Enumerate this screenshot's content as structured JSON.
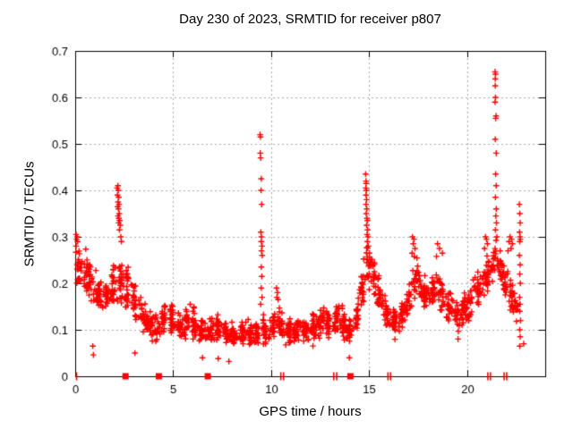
{
  "chart_data": {
    "type": "scatter",
    "title": "Day 230 of 2023, SRMTID for receiver p807",
    "xlabel": "GPS time / hours",
    "ylabel": "SRMTID / TECUs",
    "xlim": [
      0,
      24
    ],
    "ylim": [
      0,
      0.7
    ],
    "xticks": [
      {
        "v": 0,
        "label": "0"
      },
      {
        "v": 5,
        "label": "5"
      },
      {
        "v": 10,
        "label": "10"
      },
      {
        "v": 15,
        "label": "15"
      },
      {
        "v": 20,
        "label": "20"
      }
    ],
    "yticks": [
      {
        "v": 0,
        "label": "0"
      },
      {
        "v": 0.1,
        "label": "0.1"
      },
      {
        "v": 0.2,
        "label": "0.2"
      },
      {
        "v": 0.3,
        "label": "0.3"
      },
      {
        "v": 0.4,
        "label": "0.4"
      },
      {
        "v": 0.5,
        "label": "0.5"
      },
      {
        "v": 0.6,
        "label": "0.6"
      },
      {
        "v": 0.7,
        "label": "0.7"
      }
    ],
    "grid": true,
    "legend": "none",
    "marker": "plus",
    "marker_color": "#ff0000",
    "grid_color": "#a8a8a8",
    "axis_color": "#000000",
    "background": "#ffffff",
    "generator": {
      "seed": 13,
      "points_per_hour": 68,
      "column_width_hours": 0.16,
      "baseline_nodes": [
        [
          0.0,
          0.25,
          0.04
        ],
        [
          0.3,
          0.235,
          0.045
        ],
        [
          0.7,
          0.21,
          0.05
        ],
        [
          1.2,
          0.175,
          0.045
        ],
        [
          1.7,
          0.175,
          0.05
        ],
        [
          2.1,
          0.21,
          0.055
        ],
        [
          2.5,
          0.2,
          0.05
        ],
        [
          2.9,
          0.175,
          0.045
        ],
        [
          3.3,
          0.135,
          0.04
        ],
        [
          3.8,
          0.115,
          0.038
        ],
        [
          4.3,
          0.105,
          0.035
        ],
        [
          4.7,
          0.135,
          0.04
        ],
        [
          5.1,
          0.115,
          0.035
        ],
        [
          5.5,
          0.105,
          0.032
        ],
        [
          5.9,
          0.13,
          0.04
        ],
        [
          6.3,
          0.1,
          0.032
        ],
        [
          6.7,
          0.095,
          0.032
        ],
        [
          7.1,
          0.1,
          0.035
        ],
        [
          7.5,
          0.105,
          0.035
        ],
        [
          7.9,
          0.085,
          0.028
        ],
        [
          8.3,
          0.09,
          0.03
        ],
        [
          8.7,
          0.095,
          0.03
        ],
        [
          9.1,
          0.085,
          0.028
        ],
        [
          9.5,
          0.105,
          0.04
        ],
        [
          9.9,
          0.09,
          0.03
        ],
        [
          10.3,
          0.125,
          0.04
        ],
        [
          10.7,
          0.1,
          0.032
        ],
        [
          11.1,
          0.095,
          0.032
        ],
        [
          11.5,
          0.105,
          0.035
        ],
        [
          11.9,
          0.09,
          0.03
        ],
        [
          12.3,
          0.11,
          0.038
        ],
        [
          12.7,
          0.13,
          0.042
        ],
        [
          13.1,
          0.11,
          0.038
        ],
        [
          13.5,
          0.13,
          0.042
        ],
        [
          13.9,
          0.085,
          0.032
        ],
        [
          14.2,
          0.1,
          0.04
        ],
        [
          14.5,
          0.15,
          0.05
        ],
        [
          14.8,
          0.22,
          0.06
        ],
        [
          15.1,
          0.24,
          0.055
        ],
        [
          15.4,
          0.2,
          0.05
        ],
        [
          15.7,
          0.155,
          0.045
        ],
        [
          16.1,
          0.11,
          0.035
        ],
        [
          16.5,
          0.115,
          0.038
        ],
        [
          16.9,
          0.145,
          0.042
        ],
        [
          17.2,
          0.19,
          0.05
        ],
        [
          17.45,
          0.225,
          0.045
        ],
        [
          17.7,
          0.175,
          0.042
        ],
        [
          18.1,
          0.17,
          0.042
        ],
        [
          18.5,
          0.19,
          0.048
        ],
        [
          18.9,
          0.17,
          0.045
        ],
        [
          19.3,
          0.14,
          0.04
        ],
        [
          19.6,
          0.125,
          0.038
        ],
        [
          20.0,
          0.155,
          0.042
        ],
        [
          20.4,
          0.18,
          0.048
        ],
        [
          20.8,
          0.195,
          0.048
        ],
        [
          21.2,
          0.23,
          0.048
        ],
        [
          21.5,
          0.26,
          0.04
        ],
        [
          21.8,
          0.22,
          0.04
        ],
        [
          22.1,
          0.18,
          0.05
        ],
        [
          22.4,
          0.155,
          0.045
        ],
        [
          22.6,
          0.13,
          0.04
        ]
      ]
    },
    "extra_points": [
      [
        2.14,
        0.405
      ],
      [
        2.18,
        0.41
      ],
      [
        2.2,
        0.4
      ],
      [
        2.16,
        0.39
      ],
      [
        2.22,
        0.385
      ],
      [
        2.19,
        0.375
      ],
      [
        2.24,
        0.37
      ],
      [
        2.17,
        0.365
      ],
      [
        2.21,
        0.36
      ],
      [
        2.25,
        0.35
      ],
      [
        2.19,
        0.345
      ],
      [
        2.23,
        0.34
      ],
      [
        2.27,
        0.335
      ],
      [
        2.22,
        0.33
      ],
      [
        2.3,
        0.325
      ],
      [
        2.26,
        0.315
      ],
      [
        2.33,
        0.3
      ],
      [
        2.36,
        0.29
      ],
      [
        9.44,
        0.52
      ],
      [
        9.46,
        0.515
      ],
      [
        9.45,
        0.48
      ],
      [
        9.47,
        0.47
      ],
      [
        9.5,
        0.425
      ],
      [
        9.49,
        0.4
      ],
      [
        9.52,
        0.37
      ],
      [
        9.48,
        0.31
      ],
      [
        9.51,
        0.3
      ],
      [
        9.5,
        0.29
      ],
      [
        9.54,
        0.28
      ],
      [
        9.51,
        0.27
      ],
      [
        9.55,
        0.26
      ],
      [
        9.5,
        0.235
      ],
      [
        9.53,
        0.215
      ],
      [
        9.5,
        0.19
      ],
      [
        9.54,
        0.17
      ],
      [
        9.47,
        0.155
      ],
      [
        14.83,
        0.435
      ],
      [
        14.85,
        0.42
      ],
      [
        14.86,
        0.415
      ],
      [
        14.84,
        0.405
      ],
      [
        14.87,
        0.4
      ],
      [
        14.85,
        0.39
      ],
      [
        14.88,
        0.38
      ],
      [
        14.85,
        0.37
      ],
      [
        14.89,
        0.36
      ],
      [
        14.86,
        0.35
      ],
      [
        14.9,
        0.34
      ],
      [
        14.92,
        0.335
      ],
      [
        14.88,
        0.325
      ],
      [
        14.93,
        0.315
      ],
      [
        14.9,
        0.305
      ],
      [
        14.95,
        0.3
      ],
      [
        14.92,
        0.29
      ],
      [
        14.97,
        0.28
      ],
      [
        21.44,
        0.655
      ],
      [
        21.46,
        0.65
      ],
      [
        21.45,
        0.64
      ],
      [
        21.45,
        0.625
      ],
      [
        21.46,
        0.6
      ],
      [
        21.44,
        0.59
      ],
      [
        21.49,
        0.56
      ],
      [
        21.47,
        0.555
      ],
      [
        21.45,
        0.51
      ],
      [
        21.5,
        0.48
      ],
      [
        21.47,
        0.435
      ],
      [
        21.5,
        0.41
      ],
      [
        21.46,
        0.385
      ],
      [
        21.5,
        0.36
      ],
      [
        21.48,
        0.345
      ],
      [
        21.51,
        0.33
      ],
      [
        21.46,
        0.315
      ],
      [
        21.53,
        0.3
      ],
      [
        22.68,
        0.37
      ],
      [
        22.7,
        0.35
      ],
      [
        22.72,
        0.33
      ],
      [
        22.69,
        0.31
      ],
      [
        22.71,
        0.3
      ],
      [
        22.73,
        0.295
      ],
      [
        22.7,
        0.29
      ],
      [
        22.68,
        0.26
      ],
      [
        22.72,
        0.24
      ],
      [
        22.7,
        0.22
      ],
      [
        22.73,
        0.2
      ],
      [
        22.69,
        0.17
      ],
      [
        22.72,
        0.155
      ],
      [
        22.7,
        0.14
      ],
      [
        22.74,
        0.12
      ],
      [
        22.7,
        0.1
      ],
      [
        22.72,
        0.085
      ],
      [
        22.7,
        0.065
      ],
      [
        17.22,
        0.3
      ],
      [
        17.3,
        0.295
      ],
      [
        17.26,
        0.285
      ],
      [
        17.35,
        0.275
      ],
      [
        17.2,
        0.265
      ],
      [
        18.5,
        0.285
      ],
      [
        18.6,
        0.275
      ],
      [
        18.75,
        0.265
      ],
      [
        18.45,
        0.258
      ],
      [
        20.95,
        0.3
      ],
      [
        21.0,
        0.295
      ],
      [
        21.05,
        0.285
      ],
      [
        20.9,
        0.275
      ],
      [
        22.2,
        0.3
      ],
      [
        22.28,
        0.295
      ],
      [
        22.15,
        0.29
      ],
      [
        22.32,
        0.285
      ],
      [
        22.25,
        0.275
      ],
      [
        22.1,
        0.27
      ],
      [
        10.28,
        0.19
      ],
      [
        10.33,
        0.18
      ],
      [
        10.3,
        0.17
      ],
      [
        10.36,
        0.165
      ],
      [
        0.05,
        0.305
      ],
      [
        0.1,
        0.3
      ],
      [
        0.07,
        0.295
      ],
      [
        0.12,
        0.29
      ],
      [
        0.05,
        0.28
      ],
      [
        0.9,
        0.065
      ],
      [
        0.93,
        0.046
      ],
      [
        3.05,
        0.05
      ],
      [
        6.5,
        0.04
      ],
      [
        7.3,
        0.038
      ],
      [
        7.85,
        0.032
      ],
      [
        14.0,
        0.04
      ],
      [
        19.55,
        0.08
      ],
      [
        22.9,
        0.07
      ]
    ],
    "axis_markers": {
      "squares": [
        2.57,
        4.27,
        6.77,
        14.05
      ],
      "singles": [
        0.07
      ],
      "pairs": [
        [
          10.5,
          10.64
        ],
        [
          13.2,
          13.35
        ],
        [
          15.97,
          16.1
        ],
        [
          21.07,
          21.2
        ],
        [
          21.9,
          22.03
        ]
      ]
    }
  }
}
